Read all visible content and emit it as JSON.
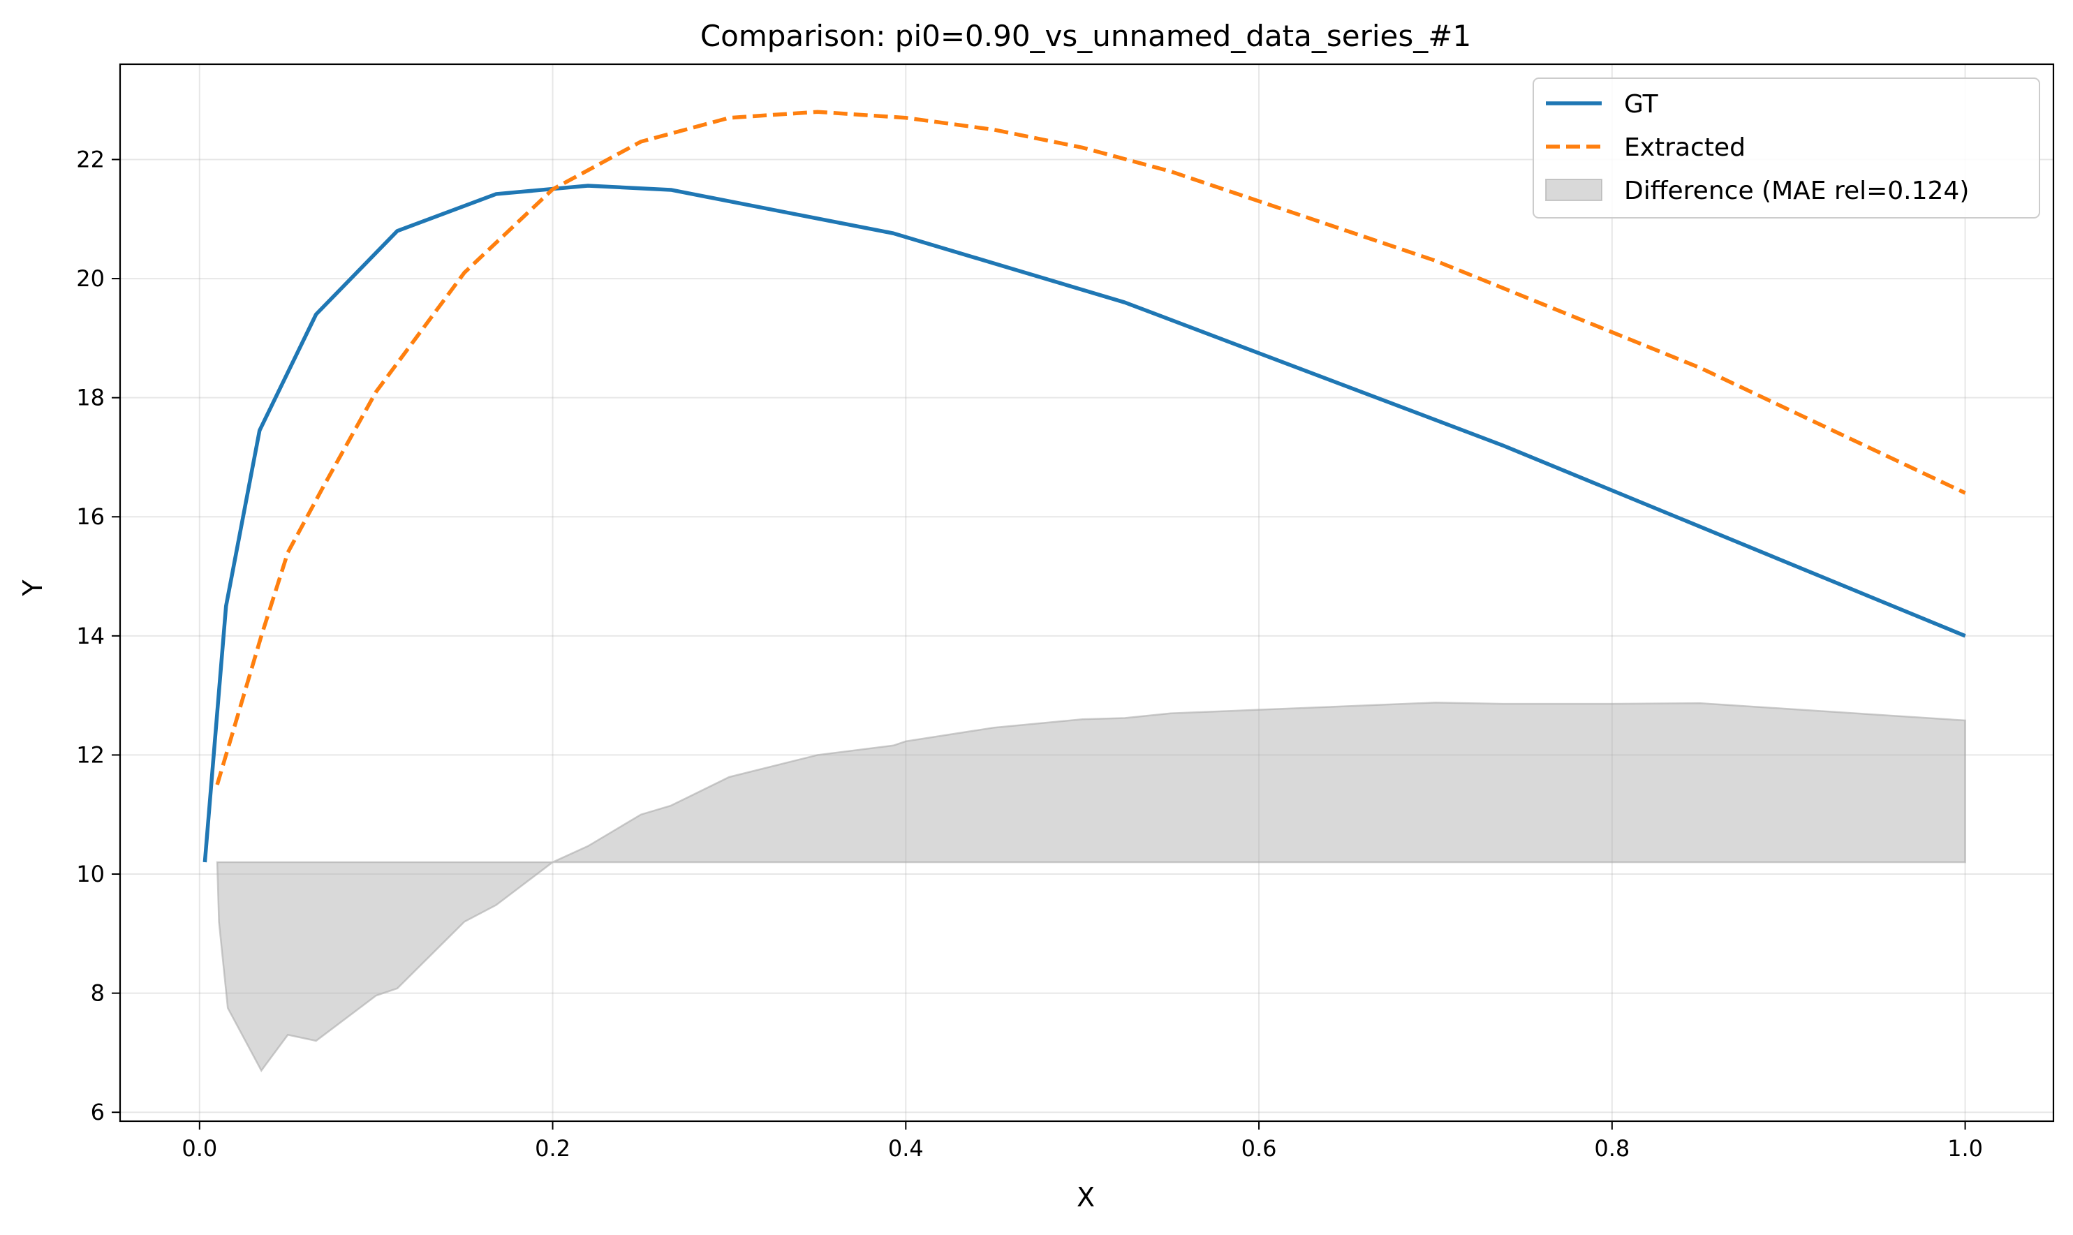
{
  "chart_data": {
    "type": "line",
    "title": "Comparison: pi0=0.90_vs_unnamed_data_series_#1",
    "xlabel": "X",
    "ylabel": "Y",
    "xlim": [
      -0.045,
      1.05
    ],
    "ylim": [
      5.85,
      23.6
    ],
    "xticks": [
      0.0,
      0.2,
      0.4,
      0.6,
      0.8,
      1.0
    ],
    "xtick_labels": [
      "0.0",
      "0.2",
      "0.4",
      "0.6",
      "0.8",
      "1.0"
    ],
    "yticks": [
      6,
      8,
      10,
      12,
      14,
      16,
      18,
      20,
      22
    ],
    "ytick_labels": [
      "6",
      "8",
      "10",
      "12",
      "14",
      "16",
      "18",
      "20",
      "22"
    ],
    "grid": true,
    "legend_position": "top-right",
    "series": [
      {
        "name": "GT",
        "style": "solid",
        "color": "#1f77b4",
        "x": [
          0.003,
          0.015,
          0.034,
          0.066,
          0.112,
          0.168,
          0.22,
          0.267,
          0.393,
          0.524,
          0.738,
          1.0
        ],
        "y": [
          10.2,
          14.5,
          17.45,
          19.4,
          20.8,
          21.42,
          21.56,
          21.49,
          20.76,
          19.6,
          17.2,
          14.0
        ]
      },
      {
        "name": "Extracted",
        "style": "dashed",
        "color": "#ff7f0e",
        "x": [
          0.01,
          0.02,
          0.035,
          0.05,
          0.07,
          0.1,
          0.15,
          0.2,
          0.25,
          0.3,
          0.35,
          0.4,
          0.45,
          0.5,
          0.55,
          0.6,
          0.7,
          0.8,
          0.85,
          1.0
        ],
        "y": [
          11.5,
          12.5,
          14.0,
          15.4,
          16.5,
          18.1,
          20.1,
          21.5,
          22.3,
          22.7,
          22.8,
          22.7,
          22.5,
          22.2,
          21.8,
          21.3,
          20.3,
          19.1,
          18.5,
          16.4
        ]
      },
      {
        "name": "Difference (MAE rel=0.124)",
        "style": "fill",
        "color": "#aaaaaa",
        "baseline": 10.2,
        "x": [
          0.01,
          0.011,
          0.016,
          0.035,
          0.05,
          0.066,
          0.1,
          0.112,
          0.15,
          0.168,
          0.2,
          0.22,
          0.25,
          0.267,
          0.3,
          0.35,
          0.393,
          0.4,
          0.45,
          0.5,
          0.524,
          0.55,
          0.6,
          0.7,
          0.738,
          0.8,
          0.85,
          1.0
        ],
        "y": [
          10.2,
          9.2,
          7.75,
          6.7,
          7.3,
          7.2,
          7.96,
          8.08,
          9.2,
          9.48,
          10.2,
          10.47,
          11.0,
          11.15,
          11.63,
          12.0,
          12.16,
          12.23,
          12.46,
          12.6,
          12.62,
          12.7,
          12.76,
          12.88,
          12.86,
          12.86,
          12.87,
          12.58
        ]
      }
    ]
  }
}
